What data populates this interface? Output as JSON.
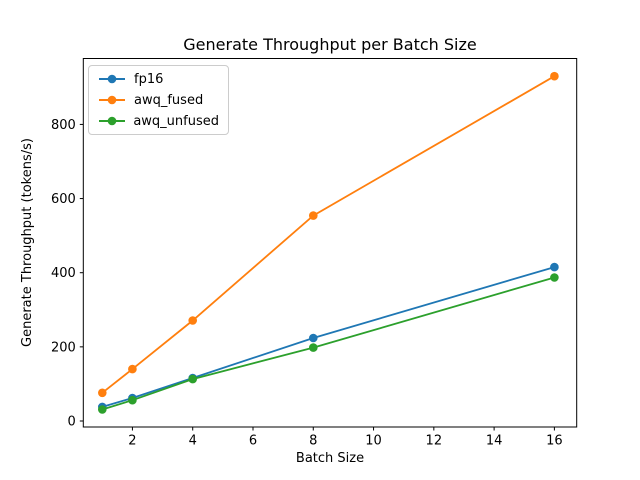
{
  "figure": {
    "background": "#ffffff",
    "axes_color": "#000000",
    "legend_border_color": "#cccccc"
  },
  "chart_data": {
    "type": "line",
    "title": "Generate Throughput per Batch Size",
    "xlabel": "Batch Size",
    "ylabel": "Generate Throughput (tokens/s)",
    "x": [
      1,
      2,
      4,
      8,
      16
    ],
    "series": [
      {
        "name": "fp16",
        "color": "#1f77b4",
        "values": [
          38,
          62,
          116,
          224,
          415
        ]
      },
      {
        "name": "awq_fused",
        "color": "#ff7f0e",
        "values": [
          76,
          140,
          271,
          554,
          930
        ]
      },
      {
        "name": "awq_unfused",
        "color": "#2ca02c",
        "values": [
          31,
          56,
          113,
          198,
          387
        ]
      }
    ],
    "marker": "circle",
    "xticks": [
      2,
      4,
      6,
      8,
      10,
      12,
      14,
      16
    ],
    "yticks": [
      0,
      200,
      400,
      600,
      800
    ],
    "xlim": [
      0.37,
      16.74
    ],
    "ylim": [
      -16.2,
      977.8
    ],
    "grid": false,
    "legend_position": "upper-left"
  }
}
